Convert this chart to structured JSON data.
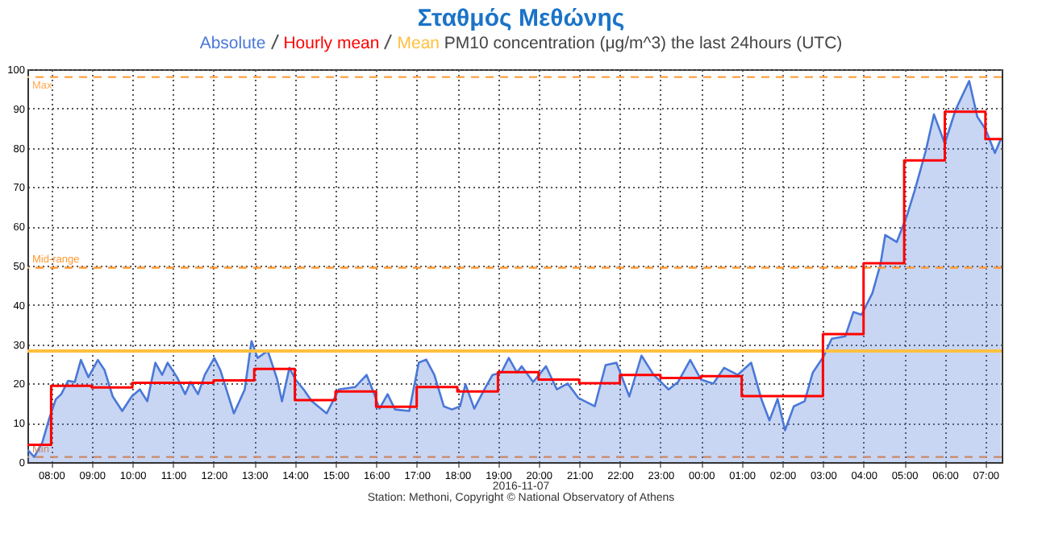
{
  "chart_data": {
    "type": "area",
    "title": "Σταθμός Μεθώνης",
    "subtitle": "PM10 concentration (μg/m^3) the last 24hours (UTC)",
    "annotations": [
      "2016-11-07",
      "Station: Methoni, Copyright © National Observatory of Athens"
    ],
    "xlim": [
      "2016-11-06T07:25",
      "2016-11-07T07:24"
    ],
    "xticks": [
      {
        "value": "2016-11-06T08:00",
        "label": "08:00"
      },
      {
        "value": "2016-11-06T09:00",
        "label": "09:00"
      },
      {
        "value": "2016-11-06T10:00",
        "label": "10:00"
      },
      {
        "value": "2016-11-06T11:00",
        "label": "11:00"
      },
      {
        "value": "2016-11-06T12:00",
        "label": "12:00"
      },
      {
        "value": "2016-11-06T13:00",
        "label": "13:00"
      },
      {
        "value": "2016-11-06T14:00",
        "label": "14:00"
      },
      {
        "value": "2016-11-06T15:00",
        "label": "15:00"
      },
      {
        "value": "2016-11-06T16:00",
        "label": "16:00"
      },
      {
        "value": "2016-11-06T17:00",
        "label": "17:00"
      },
      {
        "value": "2016-11-06T18:00",
        "label": "18:00"
      },
      {
        "value": "2016-11-06T19:00",
        "label": "19:00"
      },
      {
        "value": "2016-11-06T20:00",
        "label": "20:00"
      },
      {
        "value": "2016-11-06T21:00",
        "label": "21:00"
      },
      {
        "value": "2016-11-06T22:00",
        "label": "22:00"
      },
      {
        "value": "2016-11-06T23:00",
        "label": "23:00"
      },
      {
        "value": "2016-11-07T00:00",
        "label": "00:00"
      },
      {
        "value": "2016-11-07T01:00",
        "label": "01:00"
      },
      {
        "value": "2016-11-07T02:00",
        "label": "02:00"
      },
      {
        "value": "2016-11-07T03:00",
        "label": "03:00"
      },
      {
        "value": "2016-11-07T04:00",
        "label": "04:00"
      },
      {
        "value": "2016-11-07T05:00",
        "label": "05:00"
      },
      {
        "value": "2016-11-07T06:00",
        "label": "06:00"
      },
      {
        "value": "2016-11-07T07:00",
        "label": "07:00"
      }
    ],
    "ylim": [
      0,
      100
    ],
    "yticks": [
      0,
      10,
      20,
      30,
      40,
      50,
      60,
      70,
      80,
      90,
      100
    ],
    "grid": true,
    "series": [
      {
        "name": "Absolute",
        "color": "#4a78d8",
        "x": [
          "2016-11-06T07:25",
          "2016-11-06T07:35",
          "2016-11-06T07:47",
          "2016-11-06T07:57",
          "2016-11-06T08:07",
          "2016-11-06T08:15",
          "2016-11-06T08:25",
          "2016-11-06T08:35",
          "2016-11-06T08:44",
          "2016-11-06T08:55",
          "2016-11-06T09:09",
          "2016-11-06T09:19",
          "2016-11-06T09:31",
          "2016-11-06T09:45",
          "2016-11-06T09:59",
          "2016-11-06T10:11",
          "2016-11-06T10:22",
          "2016-11-06T10:34",
          "2016-11-06T10:44",
          "2016-11-06T10:52",
          "2016-11-06T11:06",
          "2016-11-06T11:18",
          "2016-11-06T11:26",
          "2016-11-06T11:37",
          "2016-11-06T11:47",
          "2016-11-06T12:01",
          "2016-11-06T12:10",
          "2016-11-06T12:30",
          "2016-11-06T12:46",
          "2016-11-06T12:56",
          "2016-11-06T13:05",
          "2016-11-06T13:20",
          "2016-11-06T13:34",
          "2016-11-06T13:41",
          "2016-11-06T13:52",
          "2016-11-06T14:01",
          "2016-11-06T14:13",
          "2016-11-06T14:25",
          "2016-11-06T14:47",
          "2016-11-06T15:05",
          "2016-11-06T15:29",
          "2016-11-06T15:46",
          "2016-11-06T15:56",
          "2016-11-06T16:05",
          "2016-11-06T16:17",
          "2016-11-06T16:28",
          "2016-11-06T16:49",
          "2016-11-06T17:03",
          "2016-11-06T17:14",
          "2016-11-06T17:26",
          "2016-11-06T17:40",
          "2016-11-06T17:52",
          "2016-11-06T18:04",
          "2016-11-06T18:12",
          "2016-11-06T18:25",
          "2016-11-06T18:40",
          "2016-11-06T18:52",
          "2016-11-06T19:05",
          "2016-11-06T19:16",
          "2016-11-06T19:28",
          "2016-11-06T19:35",
          "2016-11-06T19:52",
          "2016-11-06T20:11",
          "2016-11-06T20:27",
          "2016-11-06T20:43",
          "2016-11-06T20:59",
          "2016-11-06T21:23",
          "2016-11-06T21:39",
          "2016-11-06T21:55",
          "2016-11-06T22:14",
          "2016-11-06T22:32",
          "2016-11-06T22:50",
          "2016-11-06T23:12",
          "2016-11-06T23:26",
          "2016-11-06T23:44",
          "2016-11-07T00:00",
          "2016-11-07T00:18",
          "2016-11-07T00:34",
          "2016-11-07T00:54",
          "2016-11-07T01:14",
          "2016-11-07T01:29",
          "2016-11-07T01:41",
          "2016-11-07T01:53",
          "2016-11-07T02:04",
          "2016-11-07T02:17",
          "2016-11-07T02:33",
          "2016-11-07T02:45",
          "2016-11-07T03:01",
          "2016-11-07T03:13",
          "2016-11-07T03:33",
          "2016-11-07T03:45",
          "2016-11-07T03:57",
          "2016-11-07T04:13",
          "2016-11-07T04:25",
          "2016-11-07T04:32",
          "2016-11-07T04:49",
          "2016-11-07T05:04",
          "2016-11-07T05:16",
          "2016-11-07T05:32",
          "2016-11-07T05:44",
          "2016-11-07T06:00",
          "2016-11-07T06:16",
          "2016-11-07T06:36",
          "2016-11-07T06:48",
          "2016-11-07T07:00",
          "2016-11-07T07:14",
          "2016-11-07T07:23"
        ],
        "values": [
          3.2,
          1.3,
          5,
          11,
          16,
          17.3,
          20.7,
          20.4,
          26,
          21.6,
          26,
          23.4,
          16.7,
          13,
          16.7,
          18.5,
          15.5,
          25.3,
          22.2,
          25.3,
          21.6,
          17.3,
          20.4,
          17.3,
          22.2,
          26.5,
          23.4,
          12.4,
          18.5,
          30.8,
          26.5,
          28.3,
          21,
          15.5,
          24,
          21,
          18.5,
          15.5,
          12.4,
          18.5,
          19.1,
          22.2,
          17.9,
          13.6,
          17.3,
          13.4,
          13,
          25.3,
          26.1,
          22.2,
          14.2,
          13.4,
          14.2,
          19.8,
          13.6,
          18.5,
          22.2,
          22.8,
          26.5,
          22.8,
          24.4,
          20.4,
          24.4,
          18.5,
          20,
          16.3,
          14.2,
          24.7,
          25.3,
          16.7,
          27.1,
          22.2,
          18.5,
          20.4,
          26,
          21,
          20,
          24,
          22.2,
          25.3,
          16.1,
          10.6,
          16.1,
          8.1,
          14.2,
          15.5,
          22.8,
          26.9,
          31.4,
          32,
          38.2,
          37.5,
          43,
          50.4,
          57.8,
          56,
          62.7,
          69.4,
          79.3,
          88.5,
          81.1,
          89.7,
          97,
          87.9,
          84.8,
          78.7,
          82.3
        ]
      },
      {
        "name": "Hourly mean",
        "type": "step",
        "color": "#ff0000",
        "x": [
          "2016-11-06T07:25",
          "2016-11-06T08:00",
          "2016-11-06T09:00",
          "2016-11-06T10:00",
          "2016-11-06T11:00",
          "2016-11-06T12:00",
          "2016-11-06T13:00",
          "2016-11-06T14:00",
          "2016-11-06T15:00",
          "2016-11-06T16:00",
          "2016-11-06T17:00",
          "2016-11-06T18:00",
          "2016-11-06T19:00",
          "2016-11-06T20:00",
          "2016-11-06T21:00",
          "2016-11-06T22:00",
          "2016-11-06T23:00",
          "2016-11-07T00:00",
          "2016-11-07T01:00",
          "2016-11-07T02:00",
          "2016-11-07T03:00",
          "2016-11-07T04:00",
          "2016-11-07T05:00",
          "2016-11-07T06:00",
          "2016-11-07T07:00",
          "2016-11-07T07:24"
        ],
        "values": [
          4.4,
          19.4,
          19,
          20.2,
          20.2,
          20.8,
          23.7,
          15.8,
          18,
          14.1,
          19.1,
          18,
          22.9,
          21,
          20.1,
          22.2,
          21.4,
          21.9,
          16.8,
          16.8,
          32.6,
          50.6,
          76.8,
          89.2,
          82.2,
          82.2
        ]
      }
    ],
    "ref_lines": [
      {
        "axis": "y",
        "value": 98,
        "label": "Max",
        "color": "#ffaa55",
        "line_style": "dashed"
      },
      {
        "axis": "y",
        "value": 49.5,
        "label": "Mid-range",
        "color": "#ff9933",
        "line_style": "dashed"
      },
      {
        "axis": "y",
        "value": 1.3,
        "label": "Min",
        "color": "#cc8866",
        "line_style": "dashed"
      },
      {
        "axis": "y",
        "value": 28.3,
        "label": "Mean",
        "color": "#ffc040",
        "line_style": "solid"
      }
    ]
  }
}
